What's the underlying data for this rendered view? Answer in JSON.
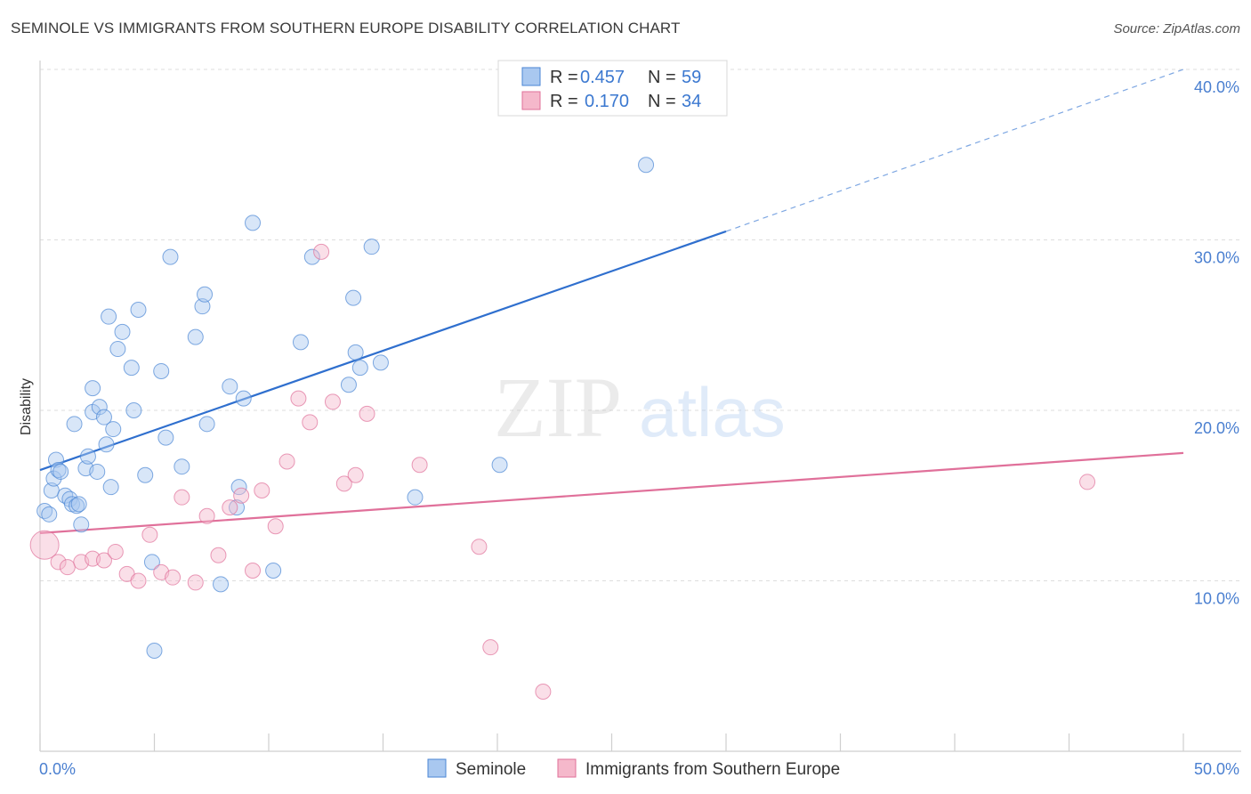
{
  "title": "SEMINOLE VS IMMIGRANTS FROM SOUTHERN EUROPE DISABILITY CORRELATION CHART",
  "source": "Source: ZipAtlas.com",
  "watermark": {
    "zip": "ZIP",
    "atlas": "atlas"
  },
  "stats_legend": [
    {
      "r_label": "R = ",
      "r_value": "0.457",
      "n_label": "N = ",
      "n_value": "59",
      "color": "#a9c8f0"
    },
    {
      "r_label": "R = ",
      "r_value": "0.170",
      "n_label": "N = ",
      "n_value": "34",
      "color": "#f5b8cb"
    }
  ],
  "chart_data": {
    "type": "scatter",
    "title": "SEMINOLE VS IMMIGRANTS FROM SOUTHERN EUROPE DISABILITY CORRELATION CHART",
    "xlabel": "",
    "ylabel": "Disability",
    "xlim": [
      0,
      50
    ],
    "ylim": [
      0,
      40
    ],
    "x_tick_labels": [
      "0.0%",
      "50.0%"
    ],
    "y_ticks": [
      10,
      20,
      30,
      40
    ],
    "y_tick_labels": [
      "10.0%",
      "20.0%",
      "30.0%",
      "40.0%"
    ],
    "grid": true,
    "legend_position": "bottom",
    "series": [
      {
        "name": "Seminole",
        "color": "#4a86d4",
        "fill": "#a9c8f0",
        "trend": {
          "x0": 0,
          "y0": 16.5,
          "x1": 30,
          "y1": 30.5,
          "dashed_to": 50,
          "dashed_y": 40.0
        },
        "points": [
          [
            0.2,
            14.1
          ],
          [
            0.4,
            13.9
          ],
          [
            0.5,
            15.3
          ],
          [
            0.6,
            16.0
          ],
          [
            0.7,
            17.1
          ],
          [
            0.8,
            16.5
          ],
          [
            0.9,
            16.4
          ],
          [
            1.1,
            15.0
          ],
          [
            1.3,
            14.8
          ],
          [
            1.4,
            14.5
          ],
          [
            1.5,
            19.2
          ],
          [
            1.6,
            14.4
          ],
          [
            1.7,
            14.5
          ],
          [
            1.8,
            13.3
          ],
          [
            2.0,
            16.6
          ],
          [
            2.1,
            17.3
          ],
          [
            2.3,
            21.3
          ],
          [
            2.3,
            19.9
          ],
          [
            2.5,
            16.4
          ],
          [
            2.6,
            20.2
          ],
          [
            2.8,
            19.6
          ],
          [
            2.9,
            18.0
          ],
          [
            3.0,
            25.5
          ],
          [
            3.1,
            15.5
          ],
          [
            3.2,
            18.9
          ],
          [
            3.4,
            23.6
          ],
          [
            3.6,
            24.6
          ],
          [
            4.0,
            22.5
          ],
          [
            4.1,
            20.0
          ],
          [
            4.3,
            25.9
          ],
          [
            4.6,
            16.2
          ],
          [
            4.9,
            11.1
          ],
          [
            5.0,
            5.9
          ],
          [
            5.3,
            22.3
          ],
          [
            5.5,
            18.4
          ],
          [
            5.7,
            29.0
          ],
          [
            6.2,
            16.7
          ],
          [
            6.8,
            24.3
          ],
          [
            7.1,
            26.1
          ],
          [
            7.2,
            26.8
          ],
          [
            7.3,
            19.2
          ],
          [
            7.9,
            9.8
          ],
          [
            8.3,
            21.4
          ],
          [
            8.6,
            14.3
          ],
          [
            8.7,
            15.5
          ],
          [
            8.9,
            20.7
          ],
          [
            9.3,
            31.0
          ],
          [
            10.2,
            10.6
          ],
          [
            11.4,
            24.0
          ],
          [
            11.9,
            29.0
          ],
          [
            13.5,
            21.5
          ],
          [
            13.7,
            26.6
          ],
          [
            13.8,
            23.4
          ],
          [
            14.0,
            22.5
          ],
          [
            14.5,
            29.6
          ],
          [
            14.9,
            22.8
          ],
          [
            16.4,
            14.9
          ],
          [
            20.1,
            16.8
          ],
          [
            26.5,
            34.4
          ]
        ]
      },
      {
        "name": "Immigrants from Southern Europe",
        "color": "#e0709a",
        "fill": "#f5b8cb",
        "trend": {
          "x0": 0,
          "y0": 12.8,
          "x1": 50,
          "y1": 17.5
        },
        "points": [
          [
            0.2,
            12.1
          ],
          [
            0.8,
            11.1
          ],
          [
            1.2,
            10.8
          ],
          [
            1.8,
            11.1
          ],
          [
            2.3,
            11.3
          ],
          [
            2.8,
            11.2
          ],
          [
            3.3,
            11.7
          ],
          [
            3.8,
            10.4
          ],
          [
            4.3,
            10.0
          ],
          [
            4.8,
            12.7
          ],
          [
            5.3,
            10.5
          ],
          [
            5.8,
            10.2
          ],
          [
            6.2,
            14.9
          ],
          [
            6.8,
            9.9
          ],
          [
            7.3,
            13.8
          ],
          [
            7.8,
            11.5
          ],
          [
            8.3,
            14.3
          ],
          [
            8.8,
            15.0
          ],
          [
            9.3,
            10.6
          ],
          [
            9.7,
            15.3
          ],
          [
            10.3,
            13.2
          ],
          [
            10.8,
            17.0
          ],
          [
            11.3,
            20.7
          ],
          [
            11.8,
            19.3
          ],
          [
            12.3,
            29.3
          ],
          [
            12.8,
            20.5
          ],
          [
            13.3,
            15.7
          ],
          [
            13.8,
            16.2
          ],
          [
            14.3,
            19.8
          ],
          [
            16.6,
            16.8
          ],
          [
            19.2,
            12.0
          ],
          [
            19.7,
            6.1
          ],
          [
            22.0,
            3.5
          ],
          [
            45.8,
            15.8
          ]
        ]
      }
    ]
  }
}
